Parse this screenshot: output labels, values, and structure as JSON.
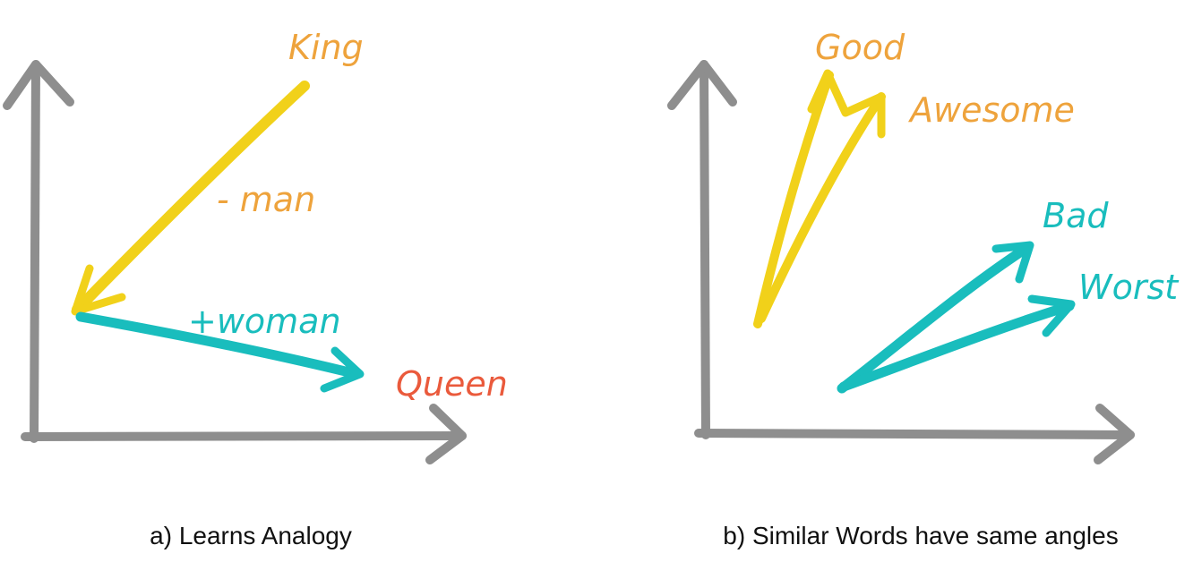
{
  "colors": {
    "axis": "#8e8e8e",
    "yellow": "#f1d11a",
    "orange_label": "#eea33c",
    "teal": "#19bdbd",
    "red_label": "#ea5a3c"
  },
  "panel_a": {
    "caption": "a) Learns Analogy",
    "labels": {
      "king": "King",
      "minus_man": "- man",
      "plus_woman": "+woman",
      "queen": "Queen"
    }
  },
  "panel_b": {
    "caption": "b) Similar Words have same angles",
    "labels": {
      "good": "Good",
      "awesome": "Awesome",
      "bad": "Bad",
      "worst": "Worst"
    }
  }
}
